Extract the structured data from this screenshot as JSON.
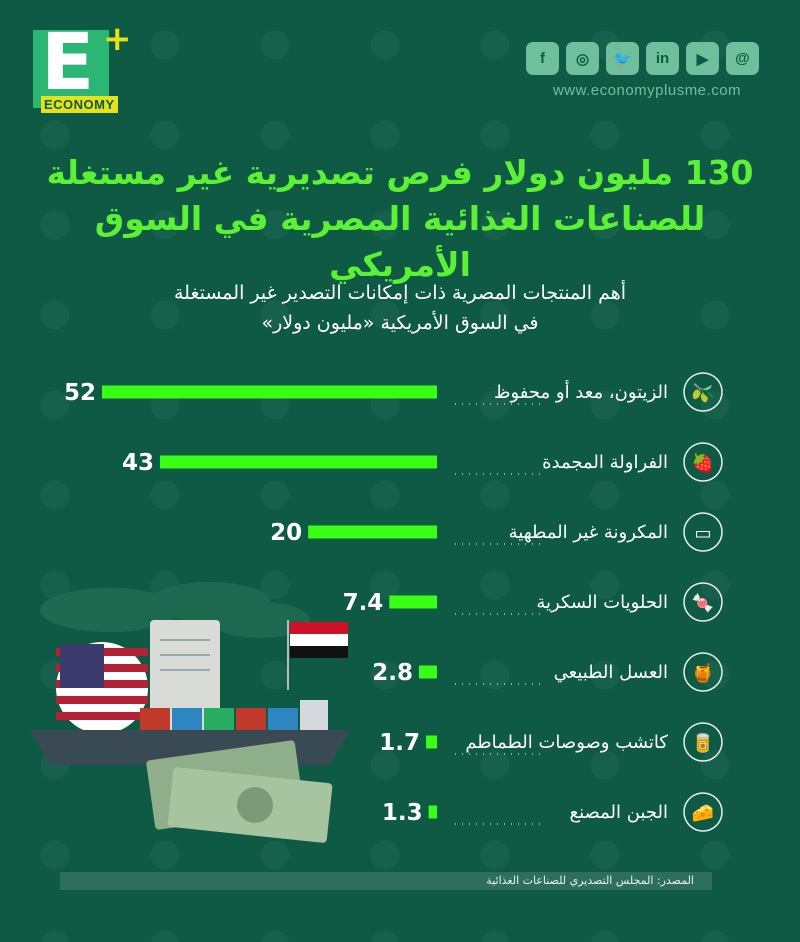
{
  "brand": {
    "logo_letter": "E",
    "logo_plus": "+",
    "logo_word": "ECONOMY",
    "website": "www.economyplusme.com"
  },
  "social": [
    {
      "icon": "facebook-icon",
      "glyph": "f"
    },
    {
      "icon": "instagram-icon",
      "glyph": "◎"
    },
    {
      "icon": "twitter-icon",
      "glyph": "🐦"
    },
    {
      "icon": "linkedin-icon",
      "glyph": "in"
    },
    {
      "icon": "youtube-icon",
      "glyph": "▶"
    },
    {
      "icon": "threads-icon",
      "glyph": "@"
    }
  ],
  "title_line1": "130 مليون دولار فرص تصديرية غير مستغلة",
  "title_line2": "للصناعات الغذائية المصرية في السوق الأمريكي",
  "subtitle_line1": "أهم المنتجات المصرية ذات إمكانات التصدير غير المستغلة",
  "subtitle_line2": "في السوق الأمريكية «مليون دولار»",
  "source": "المصدر: المجلس التصديري للصناعات الغذائية",
  "colors": {
    "background": "#0f5a44",
    "bar": "#39ff14",
    "title": "#5cf135"
  },
  "chart_data": {
    "type": "bar",
    "orientation": "horizontal",
    "categories": [
      "الزيتون، معد أو محفوظ",
      "الفراولة المجمدة",
      "المكرونة غير المطهية",
      "الحلويات السكرية",
      "العسل الطبيعي",
      "كاتشب وصوصات الطماطم",
      "الجبن المصنع"
    ],
    "values": [
      52,
      43,
      20,
      7.4,
      2.8,
      1.7,
      1.3
    ],
    "value_labels": [
      "52",
      "43",
      "20",
      "7.4",
      "2.8",
      "1.7",
      "1.3"
    ],
    "icons": [
      "olive-icon",
      "strawberry-icon",
      "pasta-icon",
      "candy-icon",
      "honey-jar-icon",
      "ketchup-icon",
      "cheese-icon"
    ],
    "xlim": [
      0,
      52
    ]
  }
}
